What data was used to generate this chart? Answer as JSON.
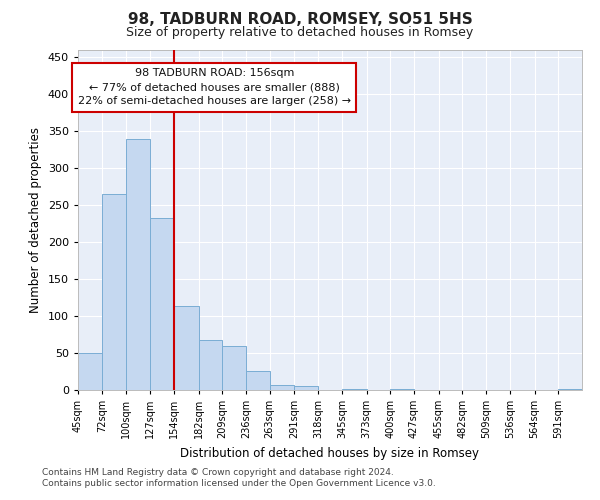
{
  "title": "98, TADBURN ROAD, ROMSEY, SO51 5HS",
  "subtitle": "Size of property relative to detached houses in Romsey",
  "xlabel": "Distribution of detached houses by size in Romsey",
  "ylabel": "Number of detached properties",
  "bar_color": "#c5d8f0",
  "bar_edge_color": "#7aadd4",
  "background_color": "#e8eef8",
  "vline_x": 154,
  "vline_color": "#cc0000",
  "categories": [
    "45sqm",
    "72sqm",
    "100sqm",
    "127sqm",
    "154sqm",
    "182sqm",
    "209sqm",
    "236sqm",
    "263sqm",
    "291sqm",
    "318sqm",
    "345sqm",
    "373sqm",
    "400sqm",
    "427sqm",
    "455sqm",
    "482sqm",
    "509sqm",
    "536sqm",
    "564sqm",
    "591sqm"
  ],
  "bin_edges": [
    45,
    72,
    100,
    127,
    154,
    182,
    209,
    236,
    263,
    291,
    318,
    345,
    373,
    400,
    427,
    455,
    482,
    509,
    536,
    564,
    591,
    618
  ],
  "values": [
    50,
    265,
    340,
    233,
    113,
    68,
    60,
    26,
    7,
    5,
    0,
    1,
    0,
    1,
    0,
    0,
    0,
    0,
    0,
    0,
    1
  ],
  "ylim": [
    0,
    460
  ],
  "yticks": [
    0,
    50,
    100,
    150,
    200,
    250,
    300,
    350,
    400,
    450
  ],
  "annotation_line1": "98 TADBURN ROAD: 156sqm",
  "annotation_line2": "← 77% of detached houses are smaller (888)",
  "annotation_line3": "22% of semi-detached houses are larger (258) →",
  "annotation_box_color": "#ffffff",
  "annotation_box_edge": "#cc0000",
  "footer_line1": "Contains HM Land Registry data © Crown copyright and database right 2024.",
  "footer_line2": "Contains public sector information licensed under the Open Government Licence v3.0."
}
